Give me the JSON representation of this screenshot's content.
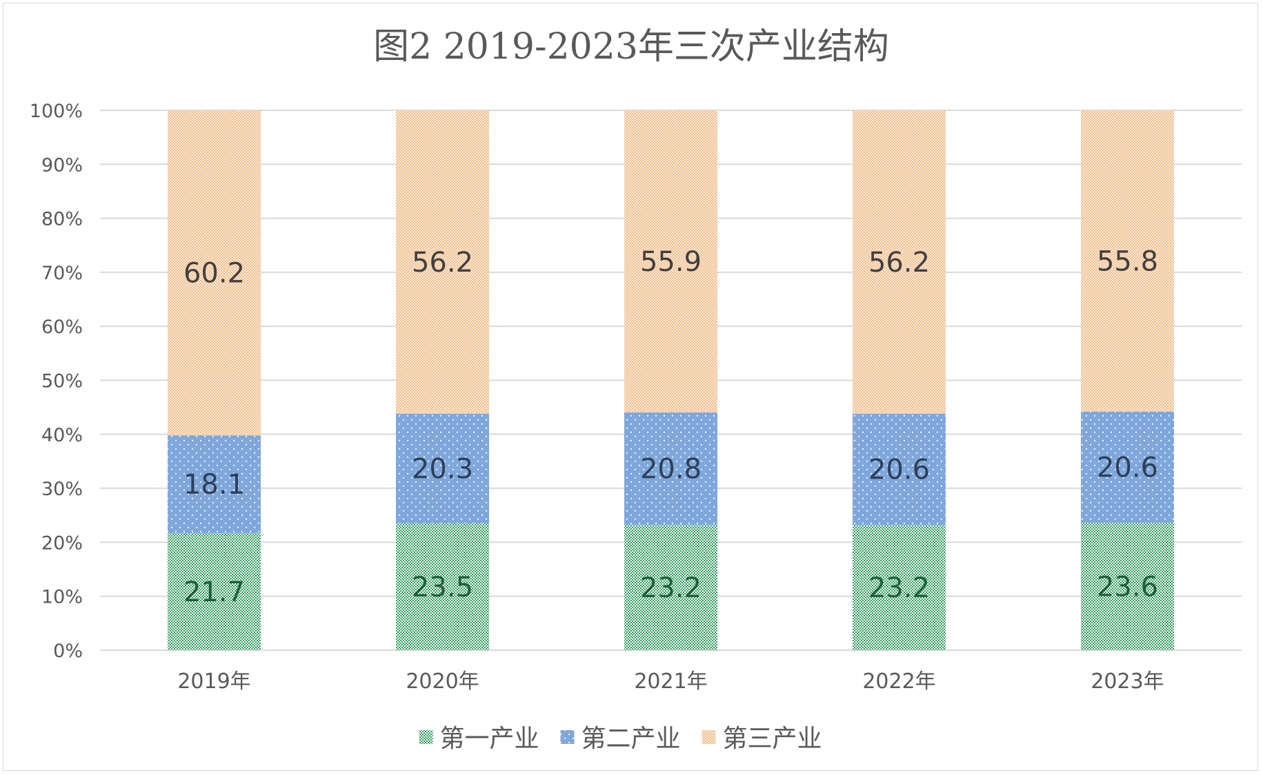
{
  "chart_data": {
    "type": "bar",
    "stacked": true,
    "percent_stacked": true,
    "title": "图2    2019-2023年三次产业结构",
    "categories": [
      "2019年",
      "2020年",
      "2021年",
      "2022年",
      "2023年"
    ],
    "series": [
      {
        "name": "第一产业",
        "values": [
          21.7,
          23.5,
          23.2,
          23.2,
          23.6
        ],
        "color": "#2e9e5b",
        "pattern": "green-check"
      },
      {
        "name": "第二产业",
        "values": [
          18.1,
          20.3,
          20.8,
          20.6,
          20.6
        ],
        "color": "#7fa7dc",
        "pattern": "blue-dots"
      },
      {
        "name": "第三产业",
        "values": [
          60.2,
          56.2,
          55.9,
          56.2,
          55.8
        ],
        "color": "#f4c9a1",
        "pattern": "orange-check"
      }
    ],
    "y_ticks": [
      "0%",
      "10%",
      "20%",
      "30%",
      "40%",
      "50%",
      "60%",
      "70%",
      "80%",
      "90%",
      "100%"
    ],
    "ylim": [
      0,
      100
    ],
    "grid": true,
    "legend_position": "bottom"
  }
}
